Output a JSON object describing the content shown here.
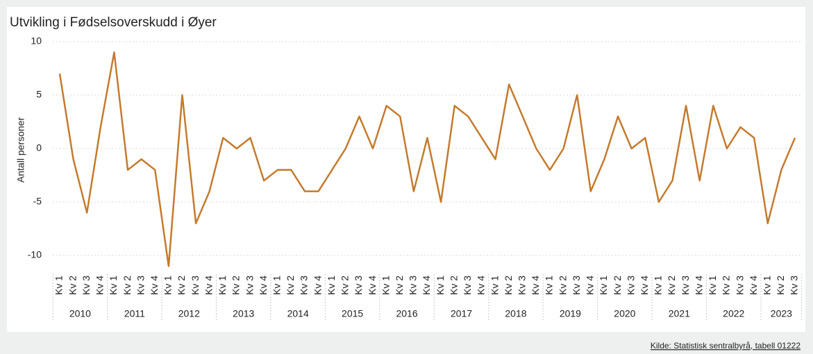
{
  "chart_data": {
    "type": "line",
    "title": "Utvikling i Fødselsoverskudd i Øyer",
    "y_label": "Antall personer",
    "source": "Kilde: Statistisk sentralbyrå, tabell 01222",
    "color": "#c47a2c",
    "grid": true,
    "ylim": [
      -11,
      10
    ],
    "yticks": [
      -10,
      -5,
      0,
      5,
      10
    ],
    "categories": [
      {
        "year": "2010",
        "quarter": "Kv 1"
      },
      {
        "year": "2010",
        "quarter": "Kv 2"
      },
      {
        "year": "2010",
        "quarter": "Kv 3"
      },
      {
        "year": "2010",
        "quarter": "Kv 4"
      },
      {
        "year": "2011",
        "quarter": "Kv 1"
      },
      {
        "year": "2011",
        "quarter": "Kv 2"
      },
      {
        "year": "2011",
        "quarter": "Kv 3"
      },
      {
        "year": "2011",
        "quarter": "Kv 4"
      },
      {
        "year": "2012",
        "quarter": "Kv 1"
      },
      {
        "year": "2012",
        "quarter": "Kv 2"
      },
      {
        "year": "2012",
        "quarter": "Kv 3"
      },
      {
        "year": "2012",
        "quarter": "Kv 4"
      },
      {
        "year": "2013",
        "quarter": "Kv 1"
      },
      {
        "year": "2013",
        "quarter": "Kv 2"
      },
      {
        "year": "2013",
        "quarter": "Kv 3"
      },
      {
        "year": "2013",
        "quarter": "Kv 4"
      },
      {
        "year": "2014",
        "quarter": "Kv 1"
      },
      {
        "year": "2014",
        "quarter": "Kv 2"
      },
      {
        "year": "2014",
        "quarter": "Kv 3"
      },
      {
        "year": "2014",
        "quarter": "Kv 4"
      },
      {
        "year": "2015",
        "quarter": "Kv 1"
      },
      {
        "year": "2015",
        "quarter": "Kv 2"
      },
      {
        "year": "2015",
        "quarter": "Kv 3"
      },
      {
        "year": "2015",
        "quarter": "Kv 4"
      },
      {
        "year": "2016",
        "quarter": "Kv 1"
      },
      {
        "year": "2016",
        "quarter": "Kv 2"
      },
      {
        "year": "2016",
        "quarter": "Kv 3"
      },
      {
        "year": "2016",
        "quarter": "Kv 4"
      },
      {
        "year": "2017",
        "quarter": "Kv 1"
      },
      {
        "year": "2017",
        "quarter": "Kv 2"
      },
      {
        "year": "2017",
        "quarter": "Kv 3"
      },
      {
        "year": "2017",
        "quarter": "Kv 4"
      },
      {
        "year": "2018",
        "quarter": "Kv 1"
      },
      {
        "year": "2018",
        "quarter": "Kv 2"
      },
      {
        "year": "2018",
        "quarter": "Kv 3"
      },
      {
        "year": "2018",
        "quarter": "Kv 4"
      },
      {
        "year": "2019",
        "quarter": "Kv 1"
      },
      {
        "year": "2019",
        "quarter": "Kv 2"
      },
      {
        "year": "2019",
        "quarter": "Kv 3"
      },
      {
        "year": "2019",
        "quarter": "Kv 4"
      },
      {
        "year": "2020",
        "quarter": "Kv 1"
      },
      {
        "year": "2020",
        "quarter": "Kv 2"
      },
      {
        "year": "2020",
        "quarter": "Kv 3"
      },
      {
        "year": "2020",
        "quarter": "Kv 4"
      },
      {
        "year": "2021",
        "quarter": "Kv 1"
      },
      {
        "year": "2021",
        "quarter": "Kv 2"
      },
      {
        "year": "2021",
        "quarter": "Kv 3"
      },
      {
        "year": "2021",
        "quarter": "Kv 4"
      },
      {
        "year": "2022",
        "quarter": "Kv 1"
      },
      {
        "year": "2022",
        "quarter": "Kv 2"
      },
      {
        "year": "2022",
        "quarter": "Kv 3"
      },
      {
        "year": "2022",
        "quarter": "Kv 4"
      },
      {
        "year": "2023",
        "quarter": "Kv 1"
      },
      {
        "year": "2023",
        "quarter": "Kv 2"
      },
      {
        "year": "2023",
        "quarter": "Kv 3"
      }
    ],
    "values": [
      7,
      -1,
      -6,
      2,
      9,
      -2,
      -1,
      -2,
      -11,
      5,
      -7,
      -4,
      1,
      0,
      1,
      -3,
      -2,
      -2,
      -4,
      -4,
      -2,
      0,
      3,
      0,
      4,
      3,
      -4,
      1,
      -5,
      4,
      3,
      1,
      -1,
      6,
      3,
      0,
      -2,
      0,
      5,
      -4,
      -1,
      3,
      0,
      1,
      -5,
      -3,
      4,
      -3,
      4,
      0,
      2,
      1,
      -7,
      -2,
      1
    ]
  }
}
